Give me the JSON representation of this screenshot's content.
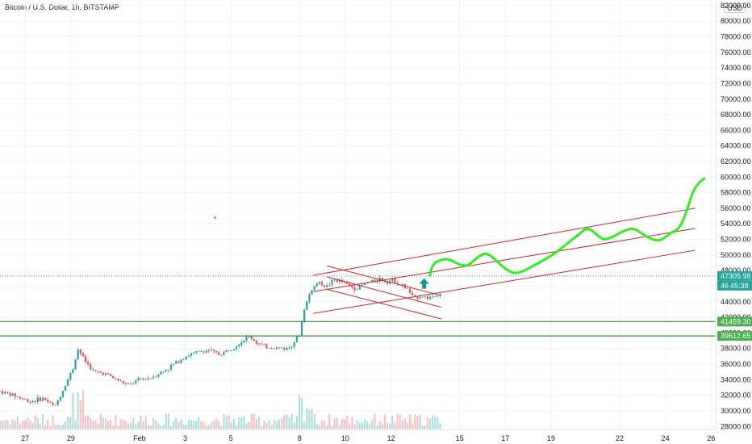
{
  "header": {
    "title": "Bitcoin / U.S. Dollar, 1h, BITSTAMP",
    "currency": "USD"
  },
  "colors": {
    "up": "#26a69a",
    "down": "#ef5350",
    "channel": "#c62828",
    "support": "#388e3c",
    "forecast": "#33ee22",
    "price_badge": "#26a69a",
    "level_badge": "#4caf50"
  },
  "chart_data": {
    "type": "candlestick",
    "y_axis": {
      "range": [
        27200,
        82300
      ],
      "ticks": [
        "82000.00",
        "80000.00",
        "78000.00",
        "76000.00",
        "74000.00",
        "72000.00",
        "70000.00",
        "68000.00",
        "66000.00",
        "64000.00",
        "62000.00",
        "60000.00",
        "58000.00",
        "56000.00",
        "54000.00",
        "52000.00",
        "50000.00",
        "48000.00",
        "46000.00",
        "44000.00",
        "42000.00",
        "40000.00",
        "38000.00",
        "36000.00",
        "34000.00",
        "32000.00",
        "30000.00",
        "28000.00"
      ]
    },
    "x_axis": {
      "labels": [
        "27",
        "29",
        "Feb",
        "3",
        "5",
        "8",
        "10",
        "12",
        "15",
        "17",
        "19",
        "22",
        "24",
        "26"
      ],
      "label_days": [
        27,
        29,
        32,
        34,
        36,
        39,
        41,
        43,
        46,
        48,
        50,
        53,
        55,
        57
      ],
      "range_days": [
        25.9,
        57.2
      ]
    },
    "price_path": [
      [
        25.9,
        32500
      ],
      [
        26.5,
        32000
      ],
      [
        27.2,
        31200
      ],
      [
        27.8,
        31600
      ],
      [
        28.3,
        30500
      ],
      [
        28.7,
        33000
      ],
      [
        29.1,
        35500
      ],
      [
        29.3,
        38000
      ],
      [
        29.6,
        36500
      ],
      [
        30.0,
        35000
      ],
      [
        30.5,
        34800
      ],
      [
        31.0,
        34000
      ],
      [
        31.5,
        33300
      ],
      [
        32.0,
        34000
      ],
      [
        32.5,
        34300
      ],
      [
        33.0,
        35000
      ],
      [
        33.5,
        36000
      ],
      [
        34.0,
        37000
      ],
      [
        34.5,
        37500
      ],
      [
        35.0,
        37800
      ],
      [
        35.5,
        37200
      ],
      [
        36.0,
        38000
      ],
      [
        36.5,
        39000
      ],
      [
        36.8,
        39600
      ],
      [
        37.1,
        38800
      ],
      [
        37.5,
        38200
      ],
      [
        38.0,
        38100
      ],
      [
        38.5,
        38000
      ],
      [
        39.0,
        39800
      ],
      [
        39.2,
        43000
      ],
      [
        39.5,
        45500
      ],
      [
        39.8,
        46500
      ],
      [
        40.2,
        46000
      ],
      [
        40.5,
        46800
      ],
      [
        40.9,
        46500
      ],
      [
        41.2,
        46000
      ],
      [
        41.5,
        45700
      ],
      [
        41.9,
        46400
      ],
      [
        42.2,
        46600
      ],
      [
        42.5,
        47000
      ],
      [
        42.8,
        46600
      ],
      [
        43.1,
        46800
      ],
      [
        43.4,
        46200
      ],
      [
        43.7,
        45700
      ],
      [
        44.0,
        44400
      ],
      [
        44.3,
        44800
      ],
      [
        44.6,
        44500
      ],
      [
        44.9,
        44800
      ],
      [
        45.2,
        45100
      ]
    ],
    "current_price": "47305.98",
    "countdown": "45:38",
    "countdown_price_prefix": "46",
    "support_levels": [
      {
        "label": "41459.30",
        "value": 41459.3
      },
      {
        "label": "39612.65",
        "value": 39612.65
      }
    ],
    "descending_channel": [
      {
        "from": [
          40.2,
          48600
        ],
        "to": [
          45.2,
          44800
        ]
      },
      {
        "from": [
          40.2,
          47200
        ],
        "to": [
          45.2,
          43300
        ]
      },
      {
        "from": [
          40.2,
          45600
        ],
        "to": [
          45.2,
          41800
        ]
      }
    ],
    "ascending_channel": [
      {
        "from": [
          39.6,
          47400
        ],
        "to": [
          56.3,
          56000
        ]
      },
      {
        "from": [
          39.6,
          45300
        ],
        "to": [
          56.3,
          53400
        ]
      },
      {
        "from": [
          39.6,
          42500
        ],
        "to": [
          56.3,
          50600
        ]
      }
    ],
    "forecast_path": [
      [
        44.7,
        47400
      ],
      [
        44.8,
        48600
      ],
      [
        45.0,
        49200
      ],
      [
        45.5,
        49600
      ],
      [
        46.0,
        48700
      ],
      [
        46.4,
        48600
      ],
      [
        46.8,
        49800
      ],
      [
        47.2,
        50300
      ],
      [
        47.6,
        49300
      ],
      [
        48.0,
        48200
      ],
      [
        48.4,
        47600
      ],
      [
        48.8,
        47900
      ],
      [
        49.2,
        48600
      ],
      [
        49.6,
        49200
      ],
      [
        50.0,
        49900
      ],
      [
        50.4,
        50700
      ],
      [
        50.8,
        51700
      ],
      [
        51.2,
        52600
      ],
      [
        51.6,
        53600
      ],
      [
        52.0,
        52600
      ],
      [
        52.3,
        51900
      ],
      [
        52.7,
        52300
      ],
      [
        53.1,
        53000
      ],
      [
        53.6,
        53500
      ],
      [
        54.0,
        52700
      ],
      [
        54.4,
        52000
      ],
      [
        54.8,
        51800
      ],
      [
        55.2,
        52800
      ],
      [
        55.6,
        53300
      ],
      [
        55.9,
        55300
      ],
      [
        56.2,
        58200
      ],
      [
        56.5,
        59400
      ],
      [
        56.7,
        59800
      ]
    ]
  }
}
